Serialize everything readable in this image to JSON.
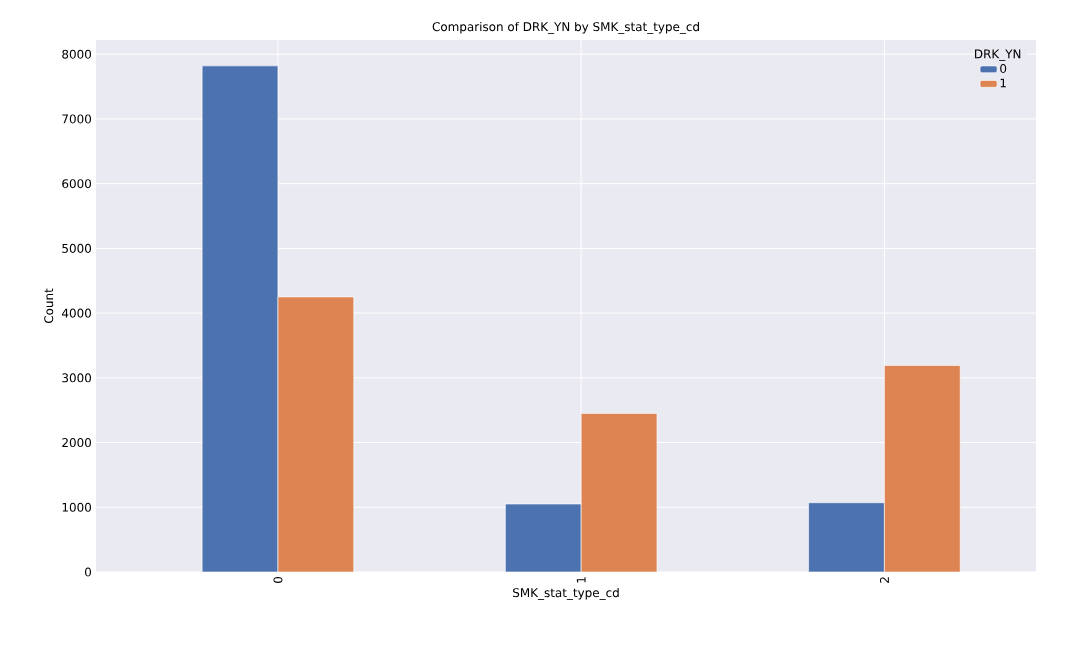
{
  "chart_data": {
    "type": "bar",
    "title": "Comparison of DRK_YN by SMK_stat_type_cd",
    "xlabel": "SMK_stat_type_cd",
    "ylabel": "Count",
    "categories": [
      "0",
      "1",
      "2"
    ],
    "series": [
      {
        "name": "0",
        "color": "#4c72b0",
        "values": [
          7820,
          1050,
          1070
        ]
      },
      {
        "name": "1",
        "color": "#dd8452",
        "values": [
          4250,
          2450,
          3190
        ]
      }
    ],
    "legend_title": "DRK_YN",
    "legend": "top right",
    "grid": true,
    "ylim": [
      0,
      8220
    ],
    "yticks": [
      0,
      1000,
      2000,
      3000,
      4000,
      5000,
      6000,
      7000,
      8000
    ]
  }
}
